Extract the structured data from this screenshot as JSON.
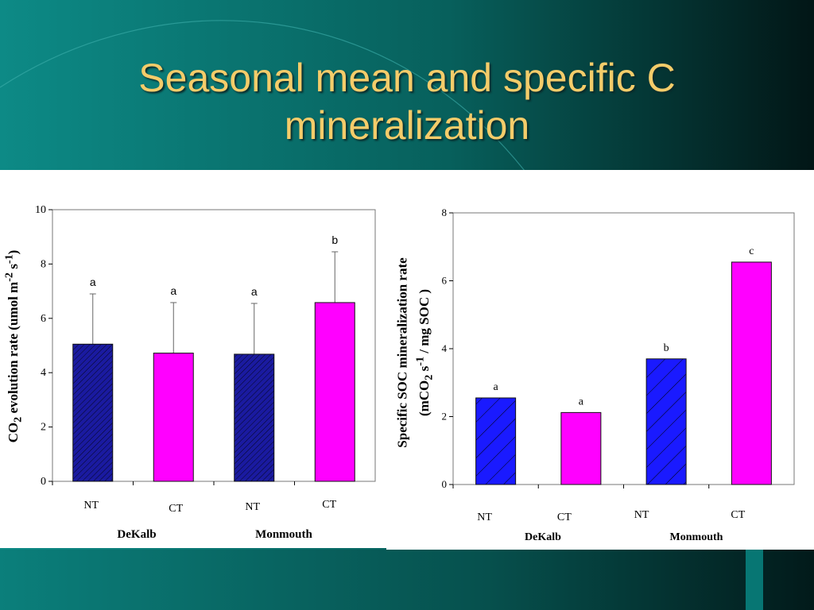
{
  "slide": {
    "title_line1": "Seasonal mean and specific C",
    "title_line2": "mineralization",
    "colors": {
      "background_dark": "#062a2a",
      "background_teal": "#0b7f7f",
      "title": "#F4CC6A"
    }
  },
  "chart_data": [
    {
      "type": "bar",
      "categories": [
        "NT",
        "CT",
        "NT",
        "CT"
      ],
      "groups": [
        "DeKalb",
        "Monmouth"
      ],
      "values": [
        5.05,
        4.72,
        4.68,
        6.58
      ],
      "error_upper": [
        6.9,
        6.58,
        6.55,
        8.45
      ],
      "letters": [
        "a",
        "a",
        "a",
        "b"
      ],
      "colors": [
        "#1a1aa0",
        "#ff00ff",
        "#1a1aa0",
        "#ff00ff"
      ],
      "hatched": [
        true,
        false,
        true,
        false
      ],
      "ylabel_main": "CO",
      "ylabel_sub": "2",
      "ylabel_rest": " evolution rate (umol m",
      "ylabel_sup1": "-2",
      "ylabel_s": " s",
      "ylabel_sup2": "-1",
      "ylabel_end": ")",
      "ylim": [
        0,
        10
      ],
      "yticks": [
        "0",
        "2",
        "4",
        "6",
        "8",
        "10"
      ],
      "grid": false
    },
    {
      "type": "bar",
      "categories": [
        "NT",
        "CT",
        "NT",
        "CT"
      ],
      "groups": [
        "DeKalb",
        "Monmouth"
      ],
      "values": [
        2.55,
        2.12,
        3.7,
        6.55
      ],
      "letters": [
        "a",
        "a",
        "b",
        "c"
      ],
      "colors": [
        "#1a1aff",
        "#ff00ff",
        "#1a1aff",
        "#ff00ff"
      ],
      "hatched": [
        true,
        false,
        true,
        false
      ],
      "ylabel_line1": "Specific SOC mineralization rate",
      "ylabel_line2_a": "(mCO",
      "ylabel_line2_sub": "2",
      "ylabel_line2_b": " s",
      "ylabel_line2_sup": "-1",
      "ylabel_line2_c": " / mg SOC )",
      "ylim": [
        0,
        8
      ],
      "yticks": [
        "0",
        "2",
        "4",
        "6",
        "8"
      ],
      "grid": false
    }
  ]
}
